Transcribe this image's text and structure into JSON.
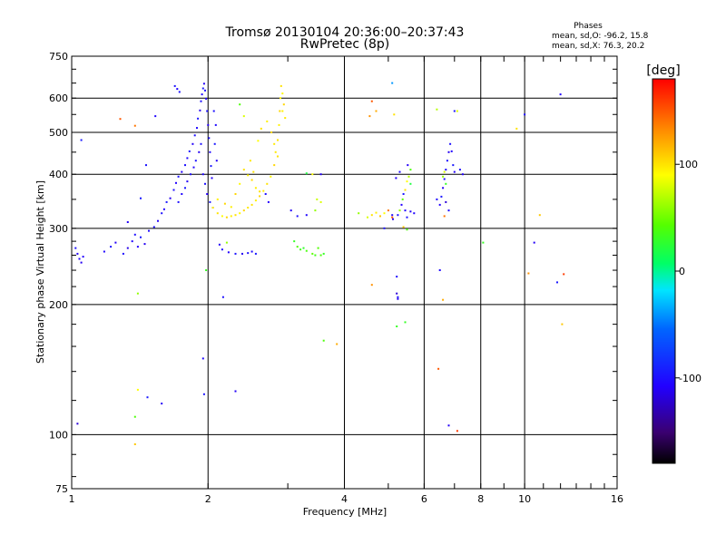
{
  "chart_data": {
    "type": "scatter",
    "title": "Tromsø 20130104 20:36:00–20:37:43",
    "subtitle": "RwPretec (8p)",
    "xlabel": "Frequency [MHz]",
    "ylabel": "Stationary phase Virtual Height [km]",
    "x_scale": "log2",
    "y_scale": "log",
    "xlim": [
      1,
      16
    ],
    "ylim": [
      75,
      750
    ],
    "x_ticks": [
      1,
      2,
      4,
      6,
      8,
      10,
      16
    ],
    "x_tick_labels": [
      "1",
      "2",
      "4",
      "6",
      "8",
      "10",
      "16"
    ],
    "y_ticks": [
      75,
      100,
      200,
      300,
      400,
      500,
      600,
      750
    ],
    "y_tick_labels": [
      "75",
      "100",
      "200",
      "300",
      "400",
      "500",
      "600",
      "750"
    ],
    "grid": true,
    "legend": {
      "title": "Phases",
      "lines": [
        "mean, sd,O: -96.2, 15.8",
        "mean, sd,X: 76.3, 20.2"
      ]
    },
    "colorbar": {
      "label": "[deg]",
      "range": [
        -180,
        180
      ],
      "ticks": [
        100,
        0,
        -100
      ],
      "tick_labels": [
        "100",
        "0",
        "-100"
      ]
    },
    "series": [
      {
        "name": "",
        "points": [
          [
            1.03,
            262,
            -110
          ],
          [
            1.04,
            255,
            -105
          ],
          [
            1.05,
            250,
            -112
          ],
          [
            1.02,
            270,
            -100
          ],
          [
            1.06,
            258,
            -108
          ],
          [
            1.05,
            480,
            -95
          ],
          [
            1.18,
            265,
            -105
          ],
          [
            1.22,
            272,
            -98
          ],
          [
            1.25,
            278,
            -110
          ],
          [
            1.3,
            262,
            -100
          ],
          [
            1.33,
            270,
            -115
          ],
          [
            1.36,
            280,
            -105
          ],
          [
            1.38,
            290,
            -100
          ],
          [
            1.4,
            272,
            -108
          ],
          [
            1.42,
            286,
            -95
          ],
          [
            1.45,
            276,
            -112
          ],
          [
            1.48,
            296,
            -104
          ],
          [
            1.52,
            302,
            -98
          ],
          [
            1.55,
            312,
            -110
          ],
          [
            1.58,
            325,
            -100
          ],
          [
            1.6,
            332,
            -106
          ],
          [
            1.62,
            345,
            -96
          ],
          [
            1.65,
            352,
            -112
          ],
          [
            1.68,
            368,
            -100
          ],
          [
            1.7,
            382,
            -108
          ],
          [
            1.72,
            395,
            -98
          ],
          [
            1.75,
            405,
            -110
          ],
          [
            1.78,
            420,
            -100
          ],
          [
            1.8,
            436,
            -105
          ],
          [
            1.82,
            452,
            -96
          ],
          [
            1.85,
            470,
            -110
          ],
          [
            1.87,
            492,
            -100
          ],
          [
            1.89,
            512,
            -104
          ],
          [
            1.9,
            538,
            -98
          ],
          [
            1.92,
            562,
            -112
          ],
          [
            1.93,
            590,
            -100
          ],
          [
            1.94,
            612,
            -106
          ],
          [
            1.95,
            632,
            -95
          ],
          [
            1.96,
            648,
            -110
          ],
          [
            1.97,
            625,
            -100
          ],
          [
            1.98,
            598,
            -108
          ],
          [
            1.99,
            560,
            -98
          ],
          [
            2.0,
            520,
            -112
          ],
          [
            2.01,
            485,
            -100
          ],
          [
            2.02,
            450,
            -104
          ],
          [
            2.03,
            418,
            -96
          ],
          [
            2.04,
            392,
            -110
          ],
          [
            1.72,
            345,
            -100
          ],
          [
            1.75,
            360,
            -105
          ],
          [
            1.78,
            372,
            -95
          ],
          [
            1.8,
            385,
            -110
          ],
          [
            1.83,
            400,
            -100
          ],
          [
            1.86,
            415,
            -106
          ],
          [
            1.88,
            430,
            -98
          ],
          [
            1.91,
            450,
            -112
          ],
          [
            1.93,
            470,
            -100
          ],
          [
            1.69,
            640,
            -100
          ],
          [
            1.71,
            630,
            -108
          ],
          [
            1.73,
            620,
            -98
          ],
          [
            1.95,
            400,
            -105
          ],
          [
            1.97,
            380,
            -100
          ],
          [
            1.99,
            360,
            -110
          ],
          [
            2.02,
            345,
            -95
          ],
          [
            2.05,
            335,
            -108
          ],
          [
            2.06,
            560,
            -100
          ],
          [
            2.08,
            520,
            -104
          ],
          [
            2.07,
            470,
            -96
          ],
          [
            2.09,
            430,
            -110
          ],
          [
            2.12,
            275,
            -110
          ],
          [
            2.15,
            268,
            -100
          ],
          [
            2.22,
            264,
            -108
          ],
          [
            2.3,
            262,
            -98
          ],
          [
            2.38,
            262,
            -112
          ],
          [
            2.45,
            263,
            -100
          ],
          [
            2.5,
            265,
            -104
          ],
          [
            2.55,
            262,
            -96
          ],
          [
            1.46,
            420,
            -98
          ],
          [
            1.42,
            352,
            -95
          ],
          [
            1.33,
            310,
            -110
          ],
          [
            1.53,
            545,
            -105
          ],
          [
            1.47,
            122,
            -95
          ],
          [
            1.58,
            118,
            -110
          ],
          [
            1.03,
            106,
            -120
          ],
          [
            2.68,
            360,
            -100
          ],
          [
            2.72,
            345,
            -108
          ],
          [
            3.05,
            330,
            -110
          ],
          [
            3.15,
            320,
            -100
          ],
          [
            3.3,
            322,
            -105
          ],
          [
            3.55,
            400,
            -110
          ],
          [
            5.1,
            650,
            -40
          ],
          [
            5.12,
            315,
            -112
          ],
          [
            5.25,
            322,
            -100
          ],
          [
            5.35,
            340,
            -108
          ],
          [
            5.4,
            360,
            -96
          ],
          [
            5.2,
            392,
            -110
          ],
          [
            5.3,
            405,
            -102
          ],
          [
            5.45,
            330,
            -105
          ],
          [
            5.5,
            318,
            -98
          ],
          [
            5.6,
            328,
            -110
          ],
          [
            5.22,
            232,
            -100
          ],
          [
            5.22,
            212,
            -120
          ],
          [
            5.25,
            206,
            -112
          ],
          [
            5.25,
            208,
            -100
          ],
          [
            6.5,
            340,
            -108
          ],
          [
            6.55,
            355,
            -96
          ],
          [
            6.6,
            372,
            -110
          ],
          [
            6.65,
            390,
            -100
          ],
          [
            6.7,
            410,
            -104
          ],
          [
            6.75,
            430,
            -98
          ],
          [
            6.8,
            450,
            -112
          ],
          [
            6.85,
            470,
            -100
          ],
          [
            6.9,
            452,
            -106
          ],
          [
            6.95,
            420,
            -96
          ],
          [
            7.0,
            405,
            -110
          ],
          [
            7.2,
            410,
            -100
          ],
          [
            7.3,
            400,
            -108
          ],
          [
            6.7,
            345,
            -120
          ],
          [
            6.8,
            330,
            -105
          ],
          [
            7.0,
            560,
            -98
          ],
          [
            10.5,
            278,
            -110
          ],
          [
            10.0,
            550,
            -100
          ],
          [
            12.0,
            612,
            -108
          ],
          [
            11.8,
            225,
            -96
          ],
          [
            6.5,
            240,
            -105
          ],
          [
            6.4,
            350,
            -102
          ],
          [
            6.8,
            105,
            -110
          ],
          [
            5.1,
            322,
            -104
          ],
          [
            5.52,
            420,
            -110
          ],
          [
            4.9,
            300,
            -98
          ],
          [
            5.7,
            325,
            -106
          ],
          [
            2.16,
            208,
            -100
          ],
          [
            1.95,
            150,
            -104
          ],
          [
            1.96,
            124,
            -98
          ],
          [
            2.3,
            126,
            -110
          ]
        ]
      },
      {
        "name": "",
        "points": [
          [
            2.05,
            335,
            95
          ],
          [
            2.1,
            325,
            100
          ],
          [
            2.15,
            320,
            90
          ],
          [
            2.2,
            318,
            105
          ],
          [
            2.25,
            320,
            95
          ],
          [
            2.3,
            322,
            100
          ],
          [
            2.35,
            325,
            92
          ],
          [
            2.4,
            330,
            105
          ],
          [
            2.45,
            335,
            98
          ],
          [
            2.5,
            340,
            100
          ],
          [
            2.55,
            348,
            95
          ],
          [
            2.6,
            356,
            104
          ],
          [
            2.65,
            366,
            96
          ],
          [
            2.7,
            380,
            100
          ],
          [
            2.75,
            395,
            92
          ],
          [
            2.8,
            420,
            105
          ],
          [
            2.82,
            450,
            98
          ],
          [
            2.85,
            480,
            100
          ],
          [
            2.87,
            520,
            95
          ],
          [
            2.88,
            560,
            104
          ],
          [
            2.89,
            600,
            96
          ],
          [
            2.9,
            640,
            100
          ],
          [
            2.92,
            615,
            92
          ],
          [
            2.94,
            580,
            105
          ],
          [
            2.96,
            540,
            98
          ],
          [
            2.4,
            410,
            100
          ],
          [
            2.45,
            398,
            95
          ],
          [
            2.5,
            388,
            104
          ],
          [
            2.55,
            372,
            96
          ],
          [
            2.6,
            365,
            100
          ],
          [
            2.35,
            380,
            92
          ],
          [
            2.3,
            360,
            105
          ],
          [
            2.48,
            430,
            98
          ],
          [
            2.52,
            405,
            100
          ],
          [
            2.1,
            350,
            95
          ],
          [
            2.18,
            342,
            104
          ],
          [
            2.25,
            336,
            96
          ],
          [
            2.58,
            478,
            90
          ],
          [
            2.62,
            510,
            100
          ],
          [
            2.7,
            530,
            95
          ],
          [
            2.76,
            500,
            105
          ],
          [
            2.8,
            470,
            98
          ],
          [
            2.85,
            440,
            100
          ],
          [
            2.92,
            560,
            95
          ],
          [
            3.1,
            280,
            30
          ],
          [
            3.15,
            272,
            40
          ],
          [
            3.2,
            268,
            35
          ],
          [
            3.25,
            270,
            28
          ],
          [
            3.3,
            266,
            38
          ],
          [
            3.4,
            262,
            45
          ],
          [
            3.45,
            260,
            35
          ],
          [
            3.55,
            260,
            40
          ],
          [
            3.6,
            262,
            30
          ],
          [
            3.5,
            270,
            42
          ],
          [
            3.45,
            330,
            60
          ],
          [
            3.48,
            350,
            75
          ],
          [
            3.55,
            345,
            80
          ],
          [
            4.5,
            318,
            80
          ],
          [
            4.6,
            322,
            100
          ],
          [
            4.7,
            326,
            95
          ],
          [
            4.8,
            320,
            110
          ],
          [
            4.9,
            325,
            90
          ],
          [
            5.0,
            330,
            140
          ],
          [
            5.1,
            318,
            150
          ],
          [
            5.3,
            330,
            60
          ],
          [
            5.38,
            350,
            45
          ],
          [
            5.45,
            368,
            100
          ],
          [
            5.5,
            385,
            90
          ],
          [
            5.55,
            395,
            70
          ],
          [
            5.6,
            410,
            40
          ],
          [
            5.4,
            302,
            110
          ],
          [
            5.5,
            298,
            40
          ],
          [
            6.6,
            395,
            60
          ],
          [
            6.65,
            405,
            80
          ],
          [
            6.7,
            380,
            30
          ],
          [
            6.65,
            320,
            140
          ],
          [
            4.6,
            590,
            150
          ],
          [
            4.7,
            560,
            120
          ],
          [
            4.55,
            545,
            130
          ],
          [
            5.15,
            550,
            100
          ],
          [
            6.4,
            565,
            70
          ],
          [
            7.1,
            560,
            80
          ],
          [
            4.3,
            325,
            60
          ],
          [
            4.6,
            222,
            130
          ],
          [
            5.45,
            182,
            30
          ],
          [
            5.22,
            178,
            30
          ],
          [
            5.6,
            380,
            20
          ],
          [
            3.6,
            165,
            40
          ],
          [
            3.85,
            162,
            120
          ],
          [
            6.45,
            142,
            150
          ],
          [
            6.6,
            205,
            120
          ],
          [
            7.1,
            102,
            160
          ],
          [
            8.1,
            278,
            30
          ],
          [
            10.8,
            322,
            110
          ],
          [
            10.2,
            236,
            130
          ],
          [
            12.1,
            180,
            110
          ],
          [
            12.2,
            235,
            160
          ],
          [
            1.4,
            212,
            60
          ],
          [
            1.4,
            127,
            90
          ],
          [
            1.38,
            110,
            40
          ],
          [
            1.38,
            95,
            110
          ],
          [
            1.28,
            537,
            150
          ],
          [
            1.38,
            518,
            140
          ],
          [
            1.98,
            240,
            30
          ],
          [
            2.2,
            278,
            60
          ],
          [
            2.35,
            580,
            40
          ],
          [
            2.4,
            545,
            80
          ],
          [
            9.6,
            510,
            100
          ],
          [
            3.3,
            402,
            20
          ],
          [
            3.4,
            400,
            90
          ]
        ]
      }
    ]
  }
}
